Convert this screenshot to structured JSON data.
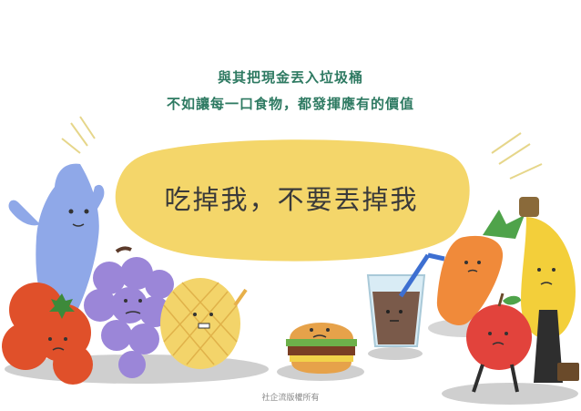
{
  "header": {
    "line1": "與其把現金丟入垃圾桶",
    "line2": "不如讓每一口食物，都發揮應有的價值"
  },
  "speech_bubble": {
    "text": "吃掉我，不要丟掉我"
  },
  "footer": {
    "credit": "社企流版權所有"
  },
  "colors": {
    "headline": "#2e7a62",
    "bubble": "#f4d66a",
    "shadow": "#c9c9c9",
    "fish": "#8fa8e8",
    "tomato": "#e0502a",
    "grape": "#9b86d8",
    "melon": "#f3d46a",
    "carrot": "#f08a3a",
    "banana": "#f3cf3a",
    "apple": "#e2433c"
  },
  "characters": [
    "fish",
    "tomatoes",
    "grapes",
    "melon-bun",
    "burger",
    "chocolate-drink",
    "carrot",
    "banana",
    "apple"
  ]
}
